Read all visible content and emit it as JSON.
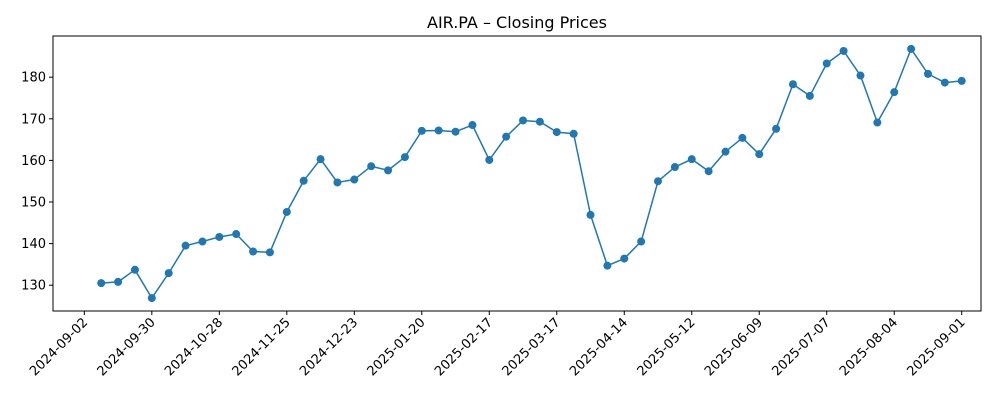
{
  "chart_data": {
    "type": "line",
    "title": "AIR.PA – Closing Prices",
    "xlabel": "",
    "ylabel": "",
    "xlim": [
      "2024-08-20",
      "2025-09-09"
    ],
    "ylim": [
      123.8,
      189.9
    ],
    "grid": false,
    "color": "#1f77b4",
    "x_ticks": [
      "2024-09-02",
      "2024-09-30",
      "2024-10-28",
      "2024-11-25",
      "2024-12-23",
      "2025-01-20",
      "2025-02-17",
      "2025-03-17",
      "2025-04-14",
      "2025-05-12",
      "2025-06-09",
      "2025-07-07",
      "2025-08-04",
      "2025-09-01"
    ],
    "y_ticks": [
      130,
      140,
      150,
      160,
      170,
      180
    ],
    "series": [
      {
        "x": [
          "2024-09-09",
          "2024-09-16",
          "2024-09-23",
          "2024-09-30",
          "2024-10-07",
          "2024-10-14",
          "2024-10-21",
          "2024-10-28",
          "2024-11-04",
          "2024-11-11",
          "2024-11-18",
          "2024-11-25",
          "2024-12-02",
          "2024-12-09",
          "2024-12-16",
          "2024-12-23",
          "2024-12-30",
          "2025-01-06",
          "2025-01-13",
          "2025-01-20",
          "2025-01-27",
          "2025-02-03",
          "2025-02-10",
          "2025-02-17",
          "2025-02-24",
          "2025-03-03",
          "2025-03-10",
          "2025-03-17",
          "2025-03-24",
          "2025-03-31",
          "2025-04-07",
          "2025-04-14",
          "2025-04-21",
          "2025-04-28",
          "2025-05-05",
          "2025-05-12",
          "2025-05-19",
          "2025-05-26",
          "2025-06-02",
          "2025-06-09",
          "2025-06-16",
          "2025-06-23",
          "2025-06-30",
          "2025-07-07",
          "2025-07-14",
          "2025-07-21",
          "2025-07-28",
          "2025-08-04",
          "2025-08-11",
          "2025-08-18",
          "2025-08-25",
          "2025-09-01"
        ],
        "values": [
          130.5,
          130.8,
          133.7,
          126.9,
          132.9,
          139.5,
          140.5,
          141.6,
          142.3,
          138.1,
          137.9,
          147.6,
          155.1,
          160.3,
          154.7,
          155.4,
          158.6,
          157.6,
          160.8,
          167.1,
          167.2,
          166.9,
          168.5,
          160.1,
          165.7,
          169.6,
          169.3,
          166.8,
          166.4,
          146.9,
          134.7,
          136.4,
          140.5,
          155.0,
          158.4,
          160.3,
          157.4,
          162.1,
          165.4,
          161.5,
          167.6,
          178.3,
          175.5,
          183.3,
          186.3,
          180.4,
          169.1,
          176.4,
          186.8,
          180.8,
          178.7,
          179.1
        ]
      }
    ]
  }
}
